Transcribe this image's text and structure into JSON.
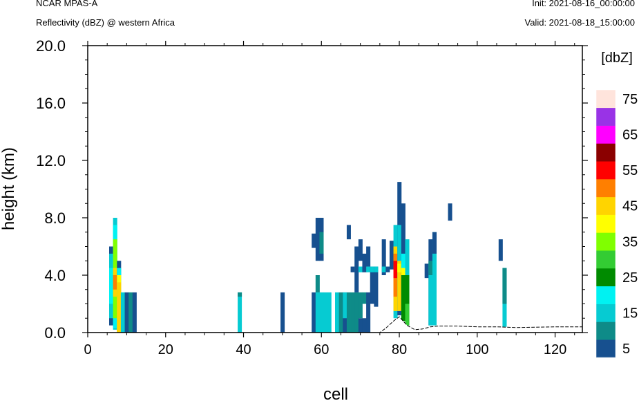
{
  "header": {
    "left_line1": "NCAR MPAS-A",
    "left_line2": "Reflectivity (dBZ) @ western Africa",
    "right_line1": "Init: 2021-08-16_00:00:00",
    "right_line2": "Valid: 2021-08-18_15:00:00"
  },
  "chart_data": {
    "type": "heatmap",
    "xlabel": "cell",
    "ylabel": "height (km)",
    "xlim": [
      0,
      127
    ],
    "ylim": [
      0,
      20
    ],
    "x_ticks": [
      "0",
      "20",
      "40",
      "60",
      "80",
      "100",
      "120"
    ],
    "x_tick_values": [
      0,
      20,
      40,
      60,
      80,
      100,
      120
    ],
    "y_ticks": [
      "0.0",
      "4.0",
      "8.0",
      "12.0",
      "16.0",
      "20.0"
    ],
    "y_tick_values": [
      0,
      4,
      8,
      12,
      16,
      20
    ],
    "colorbar": {
      "unit_label": "[dbZ]",
      "levels": [
        5,
        10,
        15,
        20,
        25,
        30,
        35,
        40,
        45,
        50,
        55,
        60,
        65,
        70,
        75
      ],
      "tick_labels": [
        "5",
        "15",
        "25",
        "35",
        "45",
        "55",
        "65",
        "75"
      ],
      "colors": [
        "#17508f",
        "#0e8b88",
        "#06cbd2",
        "#00f2f2",
        "#008b00",
        "#33cc33",
        "#80ff00",
        "#ffff00",
        "#ffd400",
        "#ff7f00",
        "#ff0000",
        "#8b0000",
        "#ff00ff",
        "#9933e6",
        "#ffe4dc"
      ]
    },
    "terrain": {
      "x": [
        0,
        70,
        75,
        76.5,
        78.5,
        80,
        82,
        84,
        86,
        88,
        90,
        95,
        100,
        105,
        110,
        120,
        127
      ],
      "height_km": [
        0,
        0,
        0,
        0.3,
        0.8,
        1.1,
        0.5,
        0.2,
        0.25,
        0.4,
        0.45,
        0.45,
        0.4,
        0.4,
        0.35,
        0.4,
        0.4
      ]
    },
    "columns": [
      {
        "x": 6,
        "segments": [
          [
            0.5,
            6.0,
            5
          ],
          [
            1.0,
            5.5,
            15
          ],
          [
            2.0,
            4.5,
            20
          ]
        ]
      },
      {
        "x": 7,
        "segments": [
          [
            0.2,
            8.0,
            15
          ],
          [
            0.3,
            7.5,
            20
          ],
          [
            1.0,
            6.5,
            35
          ],
          [
            2.5,
            4.5,
            45
          ],
          [
            3.0,
            4.0,
            50
          ]
        ]
      },
      {
        "x": 8,
        "segments": [
          [
            0.0,
            5.0,
            5
          ],
          [
            0.0,
            4.5,
            20
          ],
          [
            0.0,
            4.0,
            40
          ],
          [
            0.0,
            3.5,
            45
          ]
        ]
      },
      {
        "x": 9,
        "segments": [
          [
            0.0,
            2.8,
            15
          ]
        ]
      },
      {
        "x": 10,
        "segments": [
          [
            0.0,
            2.8,
            5
          ]
        ]
      },
      {
        "x": 11,
        "segments": [
          [
            0.0,
            2.8,
            10
          ]
        ]
      },
      {
        "x": 12,
        "segments": [
          [
            0.0,
            2.8,
            5
          ]
        ]
      },
      {
        "x": 39,
        "segments": [
          [
            0.0,
            2.8,
            15
          ],
          [
            2.5,
            2.8,
            10
          ]
        ]
      },
      {
        "x": 50,
        "segments": [
          [
            0.0,
            2.8,
            5
          ]
        ]
      },
      {
        "x": 58,
        "segments": [
          [
            0.0,
            2.8,
            5
          ],
          [
            5.9,
            6.9,
            5
          ]
        ]
      },
      {
        "x": 59,
        "segments": [
          [
            0.0,
            2.8,
            15
          ],
          [
            2.8,
            4.0,
            10
          ],
          [
            5.0,
            8.0,
            5
          ]
        ]
      },
      {
        "x": 60,
        "segments": [
          [
            0.0,
            2.8,
            15
          ],
          [
            5.0,
            8.0,
            5
          ],
          [
            5.5,
            7.0,
            10
          ]
        ]
      },
      {
        "x": 61,
        "segments": [
          [
            0.0,
            2.8,
            15
          ]
        ]
      },
      {
        "x": 62,
        "segments": [
          [
            0.0,
            2.8,
            15
          ]
        ]
      },
      {
        "x": 64,
        "segments": [
          [
            0.0,
            2.8,
            15
          ]
        ]
      },
      {
        "x": 65,
        "segments": [
          [
            0.0,
            2.8,
            10
          ]
        ]
      },
      {
        "x": 66,
        "segments": [
          [
            0.0,
            2.8,
            5
          ],
          [
            1.0,
            2.8,
            15
          ]
        ]
      },
      {
        "x": 67,
        "segments": [
          [
            0.0,
            2.8,
            10
          ],
          [
            6.5,
            7.5,
            5
          ]
        ]
      },
      {
        "x": 68,
        "segments": [
          [
            0.0,
            2.8,
            10
          ],
          [
            4.2,
            4.6,
            5
          ]
        ]
      },
      {
        "x": 69,
        "segments": [
          [
            0.0,
            2.8,
            10
          ],
          [
            4.2,
            4.6,
            15
          ],
          [
            2.8,
            6.0,
            5
          ]
        ]
      },
      {
        "x": 70,
        "segments": [
          [
            0.0,
            1.0,
            5
          ],
          [
            1.0,
            2.8,
            10
          ],
          [
            4.2,
            4.6,
            15
          ],
          [
            5.0,
            6.5,
            5
          ]
        ]
      },
      {
        "x": 71,
        "segments": [
          [
            0.0,
            1.0,
            5
          ],
          [
            2.0,
            2.8,
            10
          ],
          [
            4.2,
            5.5,
            5
          ]
        ]
      },
      {
        "x": 72,
        "segments": [
          [
            0.0,
            2.8,
            5
          ],
          [
            4.2,
            4.6,
            15
          ],
          [
            4.6,
            6.0,
            5
          ]
        ]
      },
      {
        "x": 73,
        "segments": [
          [
            2.0,
            4.6,
            5
          ],
          [
            4.2,
            4.6,
            15
          ]
        ]
      },
      {
        "x": 74,
        "segments": [
          [
            1.8,
            4.6,
            5
          ],
          [
            4.2,
            4.6,
            15
          ]
        ]
      },
      {
        "x": 76,
        "segments": [
          [
            4.0,
            6.5,
            5
          ],
          [
            4.2,
            4.6,
            15
          ]
        ]
      },
      {
        "x": 77,
        "segments": [
          [
            4.2,
            4.6,
            5
          ]
        ]
      },
      {
        "x": 78,
        "segments": [
          [
            4.4,
            6.4,
            5
          ]
        ]
      },
      {
        "x": 79,
        "segments": [
          [
            1.0,
            7.5,
            15
          ],
          [
            1.5,
            6.0,
            45
          ],
          [
            2.5,
            5.5,
            50
          ],
          [
            3.8,
            5.0,
            55
          ]
        ]
      },
      {
        "x": 80,
        "segments": [
          [
            1.2,
            10.5,
            5
          ],
          [
            1.5,
            7.5,
            15
          ],
          [
            1.5,
            5.0,
            45
          ],
          [
            4.2,
            4.8,
            40
          ]
        ]
      },
      {
        "x": 81,
        "segments": [
          [
            0.8,
            9.0,
            5
          ],
          [
            1.0,
            5.5,
            20
          ],
          [
            0.8,
            4.2,
            25
          ],
          [
            4.0,
            4.5,
            40
          ]
        ]
      },
      {
        "x": 82,
        "segments": [
          [
            0.5,
            6.5,
            15
          ],
          [
            0.5,
            4.0,
            25
          ],
          [
            0.5,
            2.0,
            30
          ]
        ]
      },
      {
        "x": 87,
        "segments": [
          [
            3.8,
            4.8,
            5
          ]
        ]
      },
      {
        "x": 88,
        "segments": [
          [
            0.5,
            6.5,
            5
          ],
          [
            0.5,
            4.8,
            15
          ],
          [
            4.0,
            5.0,
            10
          ]
        ]
      },
      {
        "x": 89,
        "segments": [
          [
            0.5,
            7.0,
            15
          ],
          [
            5.5,
            7.0,
            5
          ]
        ]
      },
      {
        "x": 93,
        "segments": [
          [
            7.8,
            9.0,
            5
          ]
        ]
      },
      {
        "x": 106,
        "segments": [
          [
            5.0,
            6.5,
            5
          ]
        ]
      },
      {
        "x": 107,
        "segments": [
          [
            0.4,
            4.5,
            15
          ],
          [
            2.0,
            4.5,
            10
          ]
        ]
      }
    ]
  }
}
